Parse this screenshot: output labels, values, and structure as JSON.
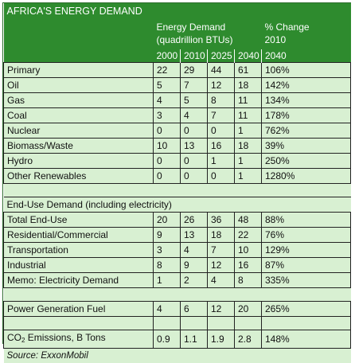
{
  "title": "AFRICA'S ENERGY DEMAND",
  "header": {
    "demand_line1": "Energy Demand",
    "demand_line2": "(quadrillion BTUs)",
    "change_line1": "% Change",
    "change_line2": "2010",
    "years": [
      "2000",
      "2010",
      "2025",
      "2040"
    ],
    "change_year": "2040"
  },
  "rows": [
    {
      "label": "Primary",
      "values": [
        "22",
        "29",
        "44",
        "61"
      ],
      "change": "106%"
    },
    {
      "label": "Oil",
      "values": [
        "5",
        "7",
        "12",
        "18"
      ],
      "change": "142%"
    },
    {
      "label": "Gas",
      "values": [
        "4",
        "5",
        "8",
        "11"
      ],
      "change": "134%"
    },
    {
      "label": "Coal",
      "values": [
        "3",
        "4",
        "7",
        "11"
      ],
      "change": "178%"
    },
    {
      "label": "Nuclear",
      "values": [
        "0",
        "0",
        "0",
        "1"
      ],
      "change": "762%"
    },
    {
      "label": "Biomass/Waste",
      "values": [
        "10",
        "13",
        "16",
        "18"
      ],
      "change": "39%"
    },
    {
      "label": "Hydro",
      "values": [
        "0",
        "0",
        "1",
        "1"
      ],
      "change": "250%"
    },
    {
      "label": "Other Renewables",
      "values": [
        "0",
        "0",
        "0",
        "1"
      ],
      "change": "1280%"
    }
  ],
  "enduse_section": "End-Use Demand (including electricity)",
  "enduse_rows": [
    {
      "label": "Total End-Use",
      "values": [
        "20",
        "26",
        "36",
        "48"
      ],
      "change": "88%"
    },
    {
      "label": "Residential/Commercial",
      "values": [
        "9",
        "13",
        "18",
        "22"
      ],
      "change": "76%"
    },
    {
      "label": "Transportation",
      "values": [
        "3",
        "4",
        "7",
        "10"
      ],
      "change": "129%"
    },
    {
      "label": "Industrial",
      "values": [
        "8",
        "9",
        "12",
        "16"
      ],
      "change": "87%"
    },
    {
      "label": "Memo: Electricity Demand",
      "values": [
        "1",
        "2",
        "4",
        "8"
      ],
      "change": "335%"
    }
  ],
  "power_row": {
    "label": "Power Generation Fuel",
    "values": [
      "4",
      "6",
      "12",
      "20"
    ],
    "change": "265%"
  },
  "co2_row": {
    "label_pre": "CO",
    "label_sub": "2",
    "label_post": " Emissions, B Tons",
    "values": [
      "0.9",
      "1.1",
      "1.9",
      "2.8"
    ],
    "change": "148%"
  },
  "source": "Source:  ExxonMobil",
  "colors": {
    "header_green": "#2e8b2e",
    "cell_green": "#d8f0d2",
    "border": "#222222"
  }
}
